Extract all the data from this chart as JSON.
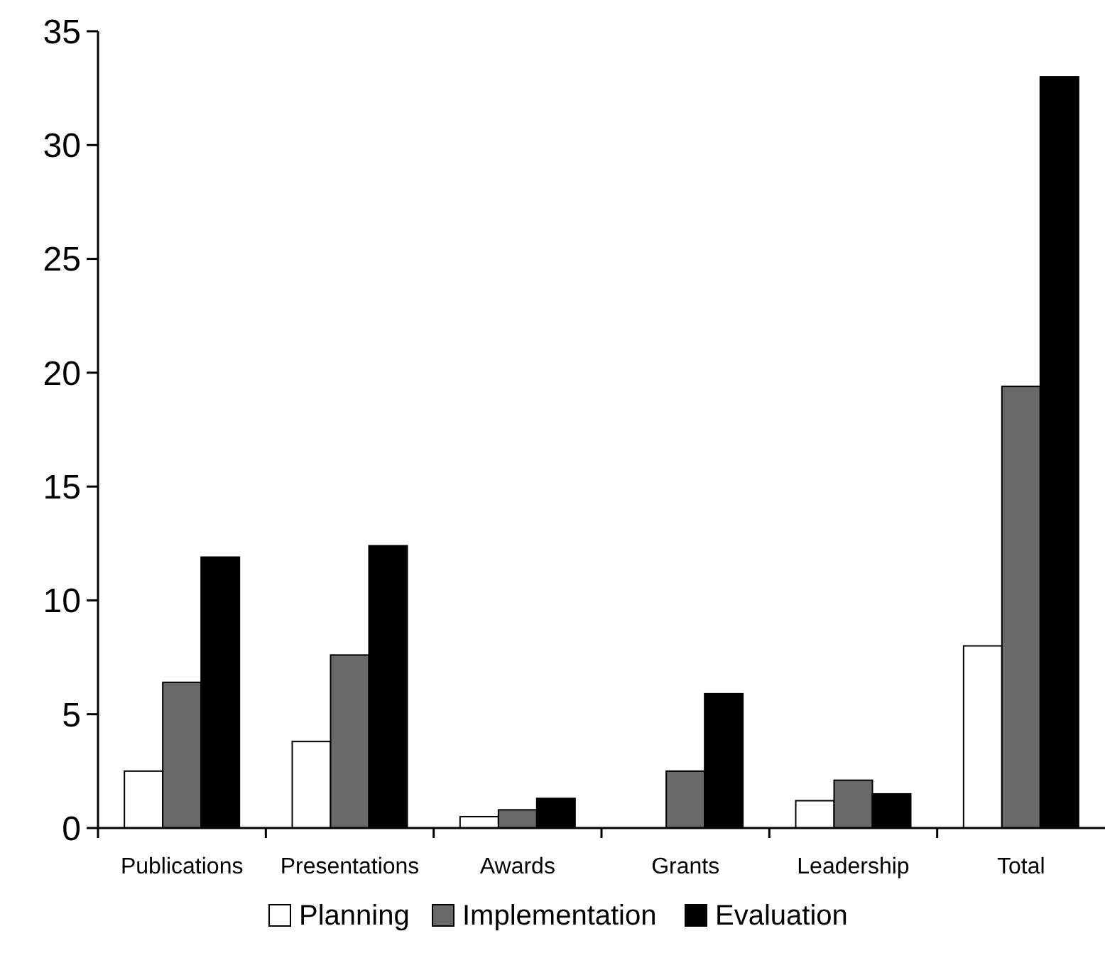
{
  "chart_data": {
    "type": "bar",
    "categories": [
      "Publications",
      "Presentations",
      "Awards",
      "Grants",
      "Leadership",
      "Total"
    ],
    "series": [
      {
        "name": "Planning",
        "color": "#ffffff",
        "values": [
          2.5,
          3.8,
          0.5,
          0,
          1.2,
          8.0
        ]
      },
      {
        "name": "Implementation",
        "color": "#696969",
        "values": [
          6.4,
          7.6,
          0.8,
          2.5,
          2.1,
          19.4
        ]
      },
      {
        "name": "Evaluation",
        "color": "#000000",
        "values": [
          11.9,
          12.4,
          1.3,
          5.9,
          1.5,
          33.0
        ]
      }
    ],
    "ylim": [
      0,
      35
    ],
    "yticks": [
      0,
      5,
      10,
      15,
      20,
      25,
      30,
      35
    ],
    "grid": false,
    "legend": "bottom"
  }
}
